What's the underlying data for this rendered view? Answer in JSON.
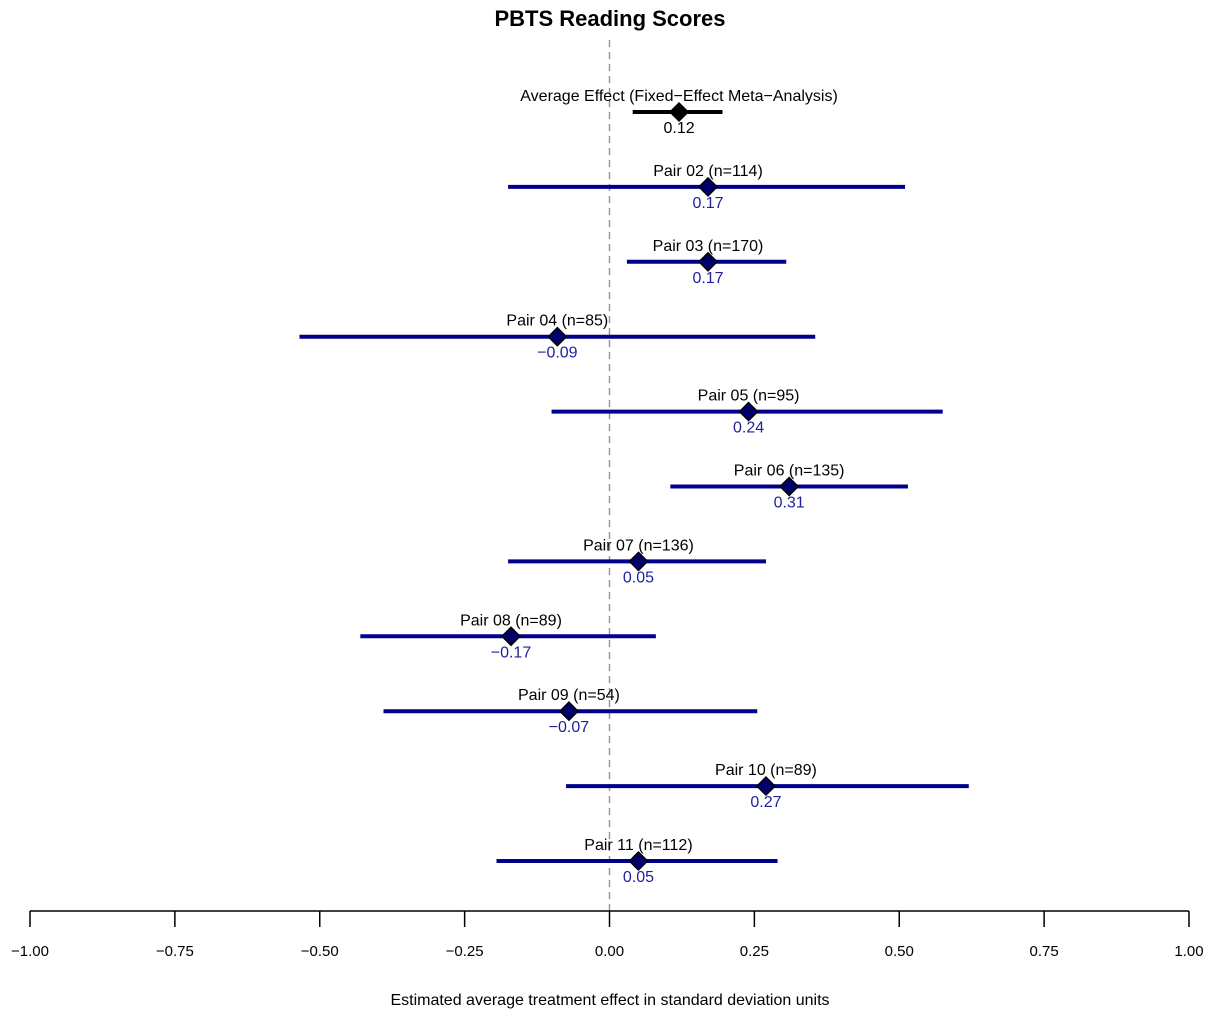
{
  "chart_data": {
    "type": "forest",
    "title": "PBTS Reading Scores",
    "xlabel": "Estimated average treatment effect in standard deviation units",
    "xlim": [
      -1.0,
      1.0
    ],
    "x_ticks": [
      -1.0,
      -0.75,
      -0.5,
      -0.25,
      0.0,
      0.25,
      0.5,
      0.75,
      1.0
    ],
    "x_tick_labels": [
      "−1.00",
      "−0.75",
      "−0.50",
      "−0.25",
      "0.00",
      "0.25",
      "0.50",
      "0.75",
      "1.00"
    ],
    "reference_line": 0,
    "grid": false,
    "colors": {
      "summary": "#000000",
      "study": "#00008B",
      "study_label": "#1f1f9e",
      "reference": "#999999"
    },
    "rows": [
      {
        "label": "Average Effect (Fixed−Effect Meta−Analysis)",
        "estimate": 0.12,
        "lower": 0.04,
        "upper": 0.195,
        "value_label": "0.12",
        "kind": "summary"
      },
      {
        "label": "Pair 02 (n=114)",
        "estimate": 0.17,
        "lower": -0.175,
        "upper": 0.51,
        "value_label": "0.17",
        "kind": "study"
      },
      {
        "label": "Pair 03 (n=170)",
        "estimate": 0.17,
        "lower": 0.03,
        "upper": 0.305,
        "value_label": "0.17",
        "kind": "study"
      },
      {
        "label": "Pair 04 (n=85)",
        "estimate": -0.09,
        "lower": -0.535,
        "upper": 0.355,
        "value_label": "−0.09",
        "kind": "study"
      },
      {
        "label": "Pair 05 (n=95)",
        "estimate": 0.24,
        "lower": -0.1,
        "upper": 0.575,
        "value_label": "0.24",
        "kind": "study"
      },
      {
        "label": "Pair 06 (n=135)",
        "estimate": 0.31,
        "lower": 0.105,
        "upper": 0.515,
        "value_label": "0.31",
        "kind": "study"
      },
      {
        "label": "Pair 07 (n=136)",
        "estimate": 0.05,
        "lower": -0.175,
        "upper": 0.27,
        "value_label": "0.05",
        "kind": "study"
      },
      {
        "label": "Pair 08 (n=89)",
        "estimate": -0.17,
        "lower": -0.43,
        "upper": 0.08,
        "value_label": "−0.17",
        "kind": "study"
      },
      {
        "label": "Pair 09 (n=54)",
        "estimate": -0.07,
        "lower": -0.39,
        "upper": 0.255,
        "value_label": "−0.07",
        "kind": "study"
      },
      {
        "label": "Pair 10 (n=89)",
        "estimate": 0.27,
        "lower": -0.075,
        "upper": 0.62,
        "value_label": "0.27",
        "kind": "study"
      },
      {
        "label": "Pair 11 (n=112)",
        "estimate": 0.05,
        "lower": -0.195,
        "upper": 0.29,
        "value_label": "0.05",
        "kind": "study"
      }
    ]
  }
}
